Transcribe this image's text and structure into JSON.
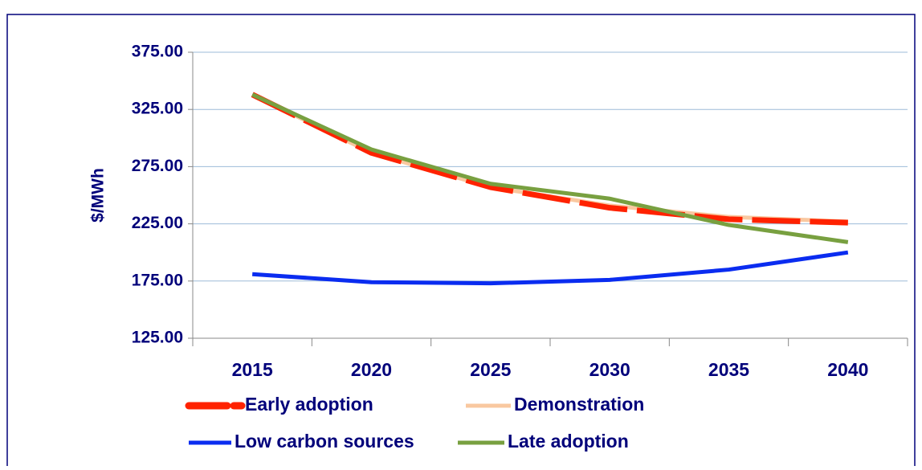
{
  "chart_data": {
    "type": "line",
    "ylabel": "$/MWh",
    "categories": [
      "2015",
      "2020",
      "2025",
      "2030",
      "2035",
      "2040"
    ],
    "ylim": [
      125,
      375
    ],
    "yticks": [
      {
        "value": 125,
        "label": "125.00"
      },
      {
        "value": 175,
        "label": "175.00"
      },
      {
        "value": 225,
        "label": "225.00"
      },
      {
        "value": 275,
        "label": "275.00"
      },
      {
        "value": 325,
        "label": "325.00"
      },
      {
        "value": 375,
        "label": "375.00"
      }
    ],
    "grid": true,
    "series": [
      {
        "name": "Early adoption",
        "color": "#ff2200",
        "dashed": true,
        "values": [
          338,
          287,
          257,
          239,
          229,
          226
        ]
      },
      {
        "name": "Demonstration",
        "color": "#f9c8a0",
        "values": [
          338,
          287,
          257,
          241,
          231,
          227
        ]
      },
      {
        "name": "Low carbon sources",
        "color": "#0a2cf0",
        "values": [
          181,
          174,
          173,
          176,
          185,
          200
        ]
      },
      {
        "name": "Late adoption",
        "color": "#78a040",
        "values": [
          338,
          290,
          260,
          247,
          224,
          209
        ]
      }
    ]
  }
}
